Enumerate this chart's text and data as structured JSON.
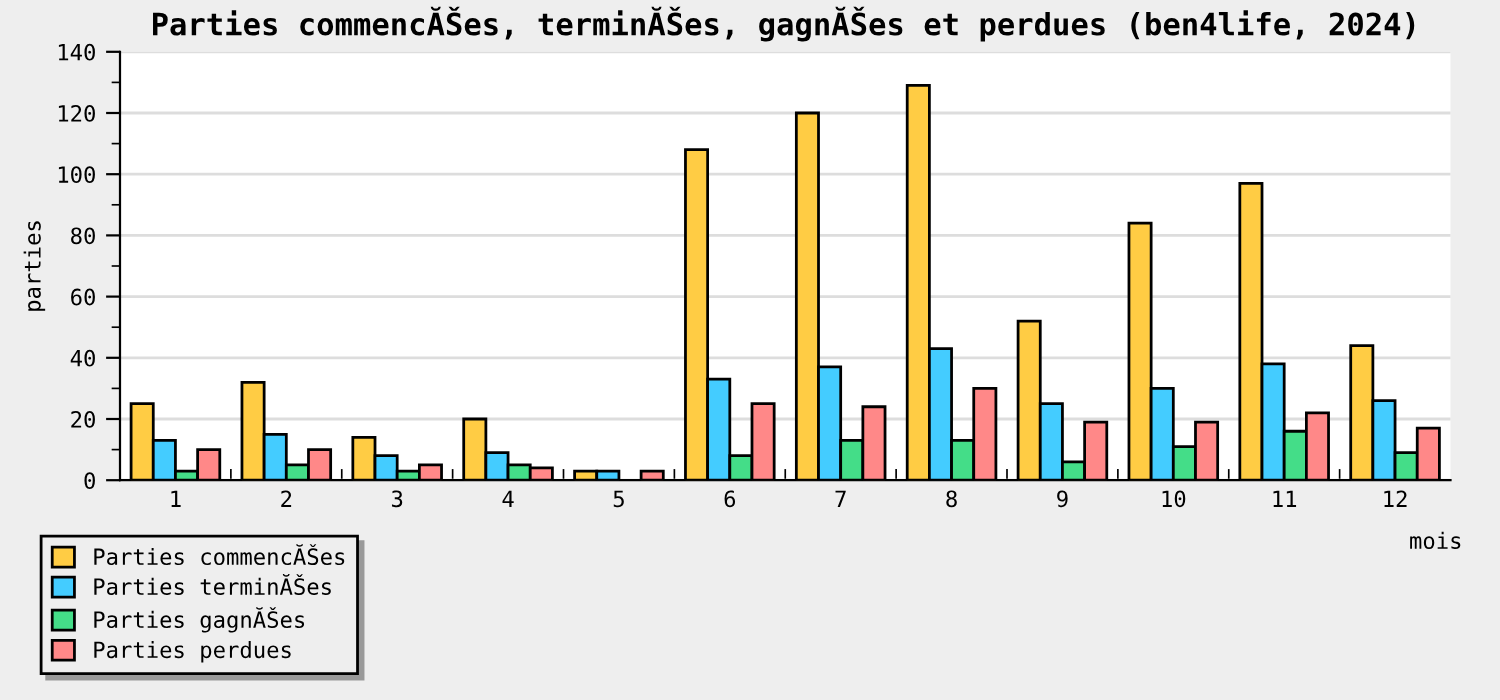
{
  "chart_data": {
    "type": "bar",
    "title": "Parties commencĂŠes, terminĂŠes, gagnĂŠes et perdues (ben4life, 2024)",
    "xlabel": "mois",
    "ylabel": "parties",
    "categories": [
      "1",
      "2",
      "3",
      "4",
      "5",
      "6",
      "7",
      "8",
      "9",
      "10",
      "11",
      "12"
    ],
    "series": [
      {
        "name": "Parties commencĂŠes",
        "color": "#ffcc44",
        "values": [
          25,
          32,
          14,
          20,
          3,
          108,
          120,
          129,
          52,
          84,
          97,
          44
        ]
      },
      {
        "name": "Parties terminĂŠes",
        "color": "#44ccff",
        "values": [
          13,
          15,
          8,
          9,
          3,
          33,
          37,
          43,
          25,
          30,
          38,
          26
        ]
      },
      {
        "name": "Parties gagnĂŠes",
        "color": "#44dd88",
        "values": [
          3,
          5,
          3,
          5,
          null,
          8,
          13,
          13,
          6,
          11,
          16,
          9
        ]
      },
      {
        "name": "Parties perdues",
        "color": "#ff8888",
        "values": [
          10,
          10,
          5,
          4,
          3,
          25,
          24,
          30,
          19,
          19,
          22,
          17
        ]
      }
    ],
    "ylim": [
      0,
      140
    ],
    "yticks": [
      0,
      {
        "value": 10,
        "label": null
      },
      20,
      {
        "value": 30,
        "label": null
      },
      40,
      {
        "value": 50,
        "label": null
      },
      60,
      {
        "value": 70,
        "label": null
      },
      80,
      {
        "value": 90,
        "label": null
      },
      100,
      {
        "value": 110,
        "label": null
      },
      120,
      {
        "value": 130,
        "label": null
      },
      140
    ],
    "grid": "y",
    "legend": "bottom left"
  }
}
